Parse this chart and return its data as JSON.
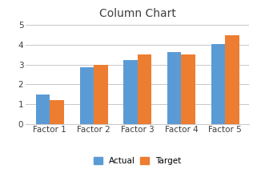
{
  "title": "Column Chart",
  "categories": [
    "Factor 1",
    "Factor 2",
    "Factor 3",
    "Factor 4",
    "Factor 5"
  ],
  "actual": [
    1.5,
    2.85,
    3.25,
    3.65,
    4.05
  ],
  "target": [
    1.2,
    3.0,
    3.5,
    3.5,
    4.5
  ],
  "actual_color": "#5B9BD5",
  "target_color": "#ED7D31",
  "ylim": [
    0,
    5.2
  ],
  "yticks": [
    0,
    1,
    2,
    3,
    4,
    5
  ],
  "title_fontsize": 10,
  "legend_labels": [
    "Actual",
    "Target"
  ],
  "background_color": "#ffffff",
  "grid_color": "#c8c8c8",
  "bar_width": 0.32,
  "tick_fontsize": 7.5,
  "label_fontsize": 7.5
}
